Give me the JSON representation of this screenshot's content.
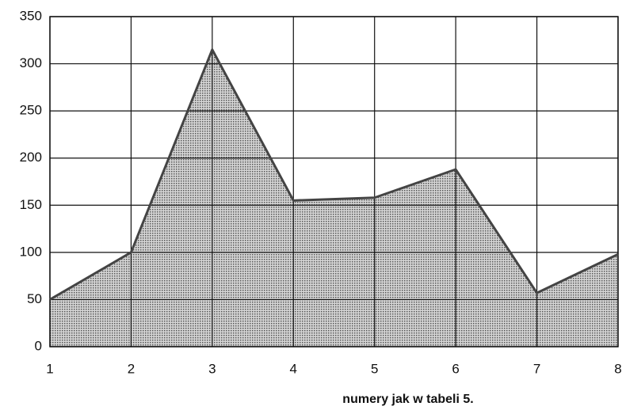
{
  "chart_data": {
    "type": "area",
    "x": [
      1,
      2,
      3,
      4,
      5,
      6,
      7,
      8
    ],
    "values": [
      50,
      100,
      315,
      155,
      158,
      188,
      57,
      98
    ],
    "color": "#444444",
    "xlim": [
      1,
      8
    ],
    "xticks": [
      1,
      2,
      3,
      4,
      5,
      6,
      7,
      8
    ],
    "ylim": [
      0,
      350
    ],
    "yticks": [
      0,
      50,
      100,
      150,
      200,
      250,
      300,
      350
    ],
    "x_label": "numery jak w tabeli 5.",
    "grid": true
  }
}
